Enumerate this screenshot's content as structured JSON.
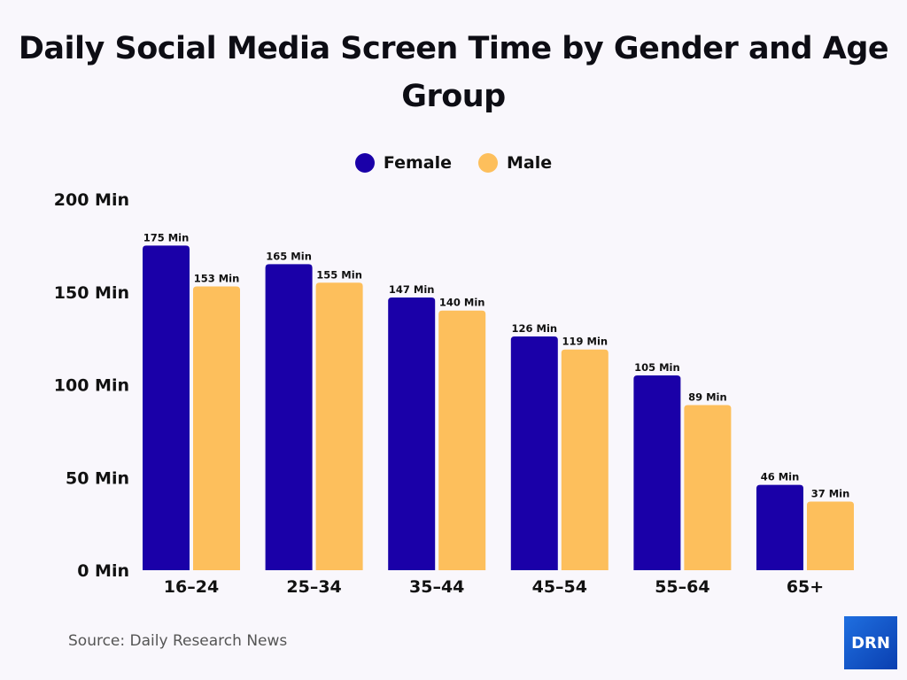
{
  "chart_data": {
    "type": "bar",
    "title": "Daily Social Media Screen Time by Gender and Age Group",
    "categories": [
      "16–24",
      "25–34",
      "35–44",
      "45–54",
      "55–64",
      "65+"
    ],
    "series": [
      {
        "name": "Female",
        "color": "#1a00a8",
        "values": [
          175,
          165,
          147,
          126,
          105,
          46
        ]
      },
      {
        "name": "Male",
        "color": "#fdbf5c",
        "values": [
          153,
          155,
          140,
          119,
          89,
          37
        ]
      }
    ],
    "unit": "Min",
    "yticks": [
      "0 Min",
      "50 Min",
      "100 Min",
      "150 Min",
      "200 Min"
    ],
    "ylim": [
      0,
      200
    ],
    "grid": false,
    "legend": "top-center"
  },
  "source": "Source: Daily Research News",
  "logo": "DRN"
}
